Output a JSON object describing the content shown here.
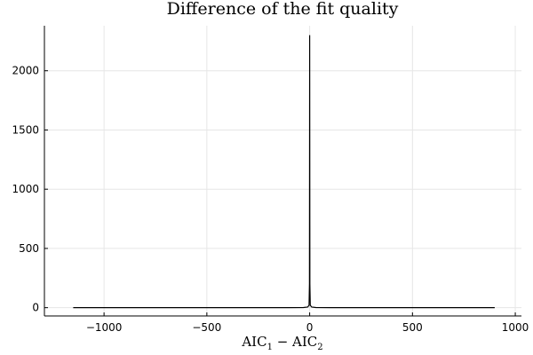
{
  "chart_data": {
    "type": "line",
    "title": "Difference of the fit quality",
    "xlabel": {
      "main": "AIC",
      "sub1": "1",
      "minus": " − ",
      "sub2": "2",
      "text": "AIC1 − AIC2"
    },
    "ylabel": "",
    "xlim": [
      -1290,
      1030
    ],
    "ylim": [
      -70,
      2380
    ],
    "xticks": [
      -1000,
      -500,
      0,
      500,
      1000
    ],
    "xtick_labels": [
      "−1000",
      "−500",
      "0",
      "500",
      "1000"
    ],
    "yticks": [
      0,
      500,
      1000,
      1500,
      2000
    ],
    "ytick_labels": [
      "0",
      "500",
      "1000",
      "1500",
      "2000"
    ],
    "grid": true,
    "legend": "none",
    "series": [
      {
        "color": "#000000",
        "x": [
          -1150,
          -500,
          -100,
          -30,
          -10,
          -3,
          -1,
          0,
          1,
          3,
          10,
          30,
          100,
          500,
          900
        ],
        "y": [
          0,
          0,
          0,
          1,
          5,
          20,
          200,
          2300,
          200,
          20,
          5,
          1,
          0,
          0,
          0
        ]
      }
    ]
  }
}
